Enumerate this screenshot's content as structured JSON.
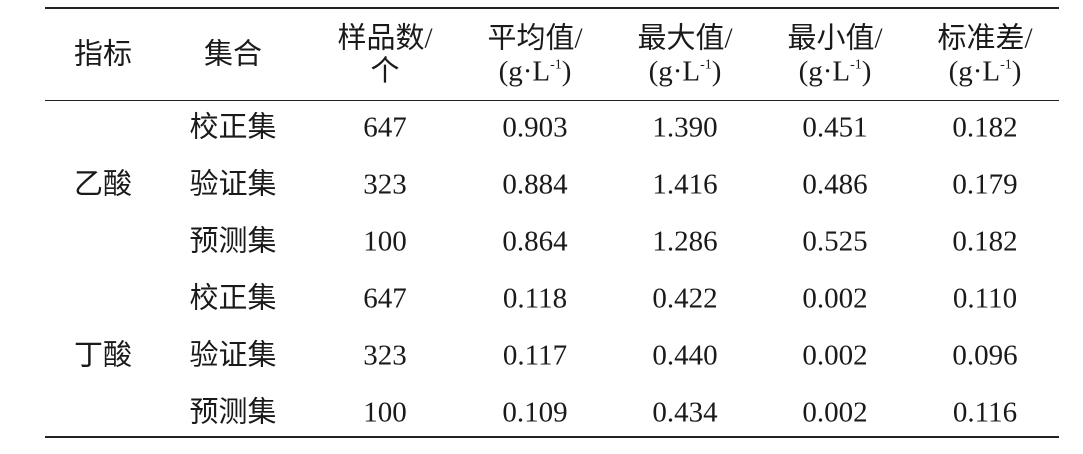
{
  "table": {
    "header": [
      {
        "line1": "指标"
      },
      {
        "line1": "集合"
      },
      {
        "line1": "样品数/",
        "line2": "个"
      },
      {
        "line1": "平均值/",
        "line2": "(g·L",
        "sup": "-1",
        "close": ")"
      },
      {
        "line1": "最大值/",
        "line2": "(g·L",
        "sup": "-1",
        "close": ")"
      },
      {
        "line1": "最小值/",
        "line2": "(g·L",
        "sup": "-1",
        "close": ")"
      },
      {
        "line1": "标准差/",
        "line2": "(g·L",
        "sup": "-1",
        "close": ")"
      }
    ],
    "groups": [
      {
        "name": "乙酸",
        "rows": [
          [
            "校正集",
            "647",
            "0.903",
            "1.390",
            "0.451",
            "0.182"
          ],
          [
            "验证集",
            "323",
            "0.884",
            "1.416",
            "0.486",
            "0.179"
          ],
          [
            "预测集",
            "100",
            "0.864",
            "1.286",
            "0.525",
            "0.182"
          ]
        ]
      },
      {
        "name": "丁酸",
        "rows": [
          [
            "校正集",
            "647",
            "0.118",
            "0.422",
            "0.002",
            "0.110"
          ],
          [
            "验证集",
            "323",
            "0.117",
            "0.440",
            "0.002",
            "0.096"
          ],
          [
            "预测集",
            "100",
            "0.109",
            "0.434",
            "0.002",
            "0.116"
          ]
        ]
      }
    ]
  }
}
